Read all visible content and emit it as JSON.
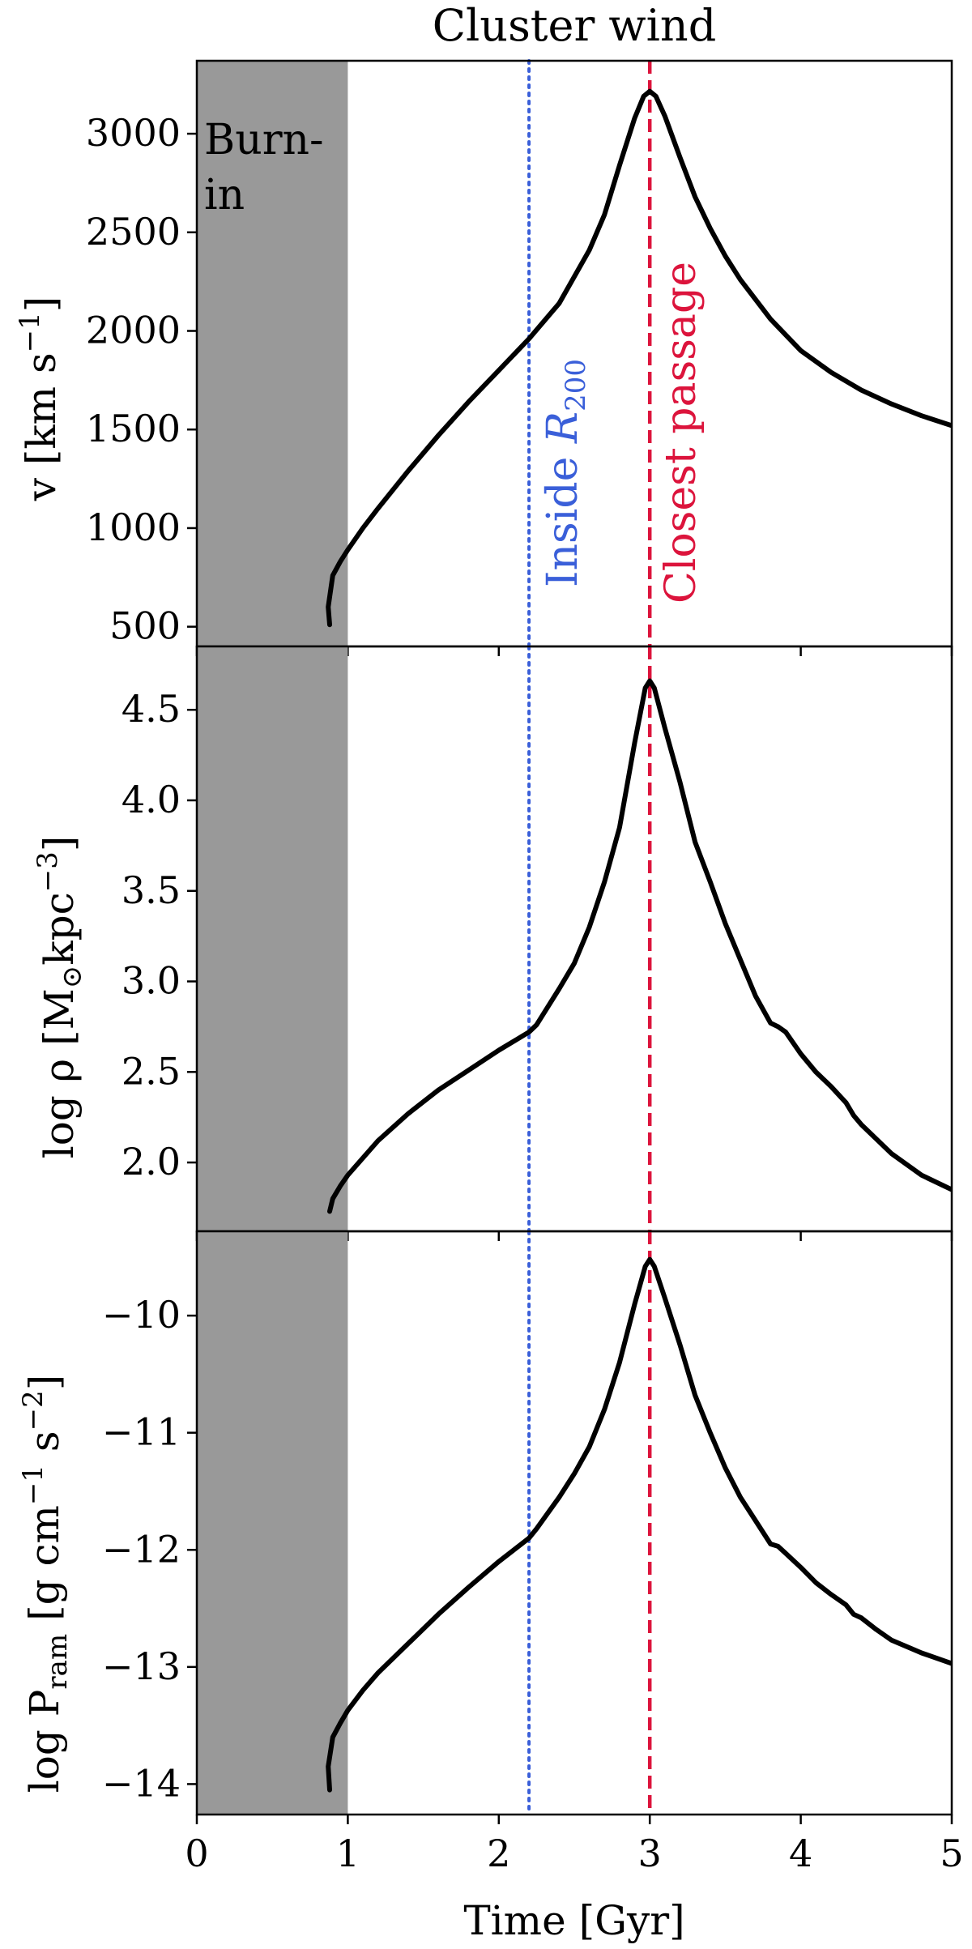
{
  "title": "Cluster wind",
  "colors": {
    "burn_in_shade": "#999999",
    "inside_r200_line": "#3a5fd9",
    "closest_passage_line": "#dc143c",
    "curve": "#000000"
  },
  "annotations": {
    "burn_in_line1": "Burn-",
    "burn_in_line2": "in",
    "inside_r200_prefix": "Inside ",
    "inside_r200_symbol": "R",
    "inside_r200_sub": "200",
    "closest_passage": "Closest passage"
  },
  "xlabel": "Time [Gyr]",
  "ylabel_v": {
    "main": "v [km s",
    "sup": "−1",
    "close": "]"
  },
  "ylabel_rho": {
    "main": "log ρ [M",
    "sub": "⊙",
    "mid": "kpc",
    "sup": "−3",
    "close": "]"
  },
  "ylabel_pram": {
    "main": "log P",
    "sub": "ram",
    "mid": " [g cm",
    "sup1": "−1",
    "mid2": " s",
    "sup2": "−2",
    "close": "]"
  },
  "chart_data": [
    {
      "type": "line",
      "panel": "velocity",
      "xlim": [
        0,
        5
      ],
      "ylim": [
        400,
        3370
      ],
      "x_ticks": [
        0,
        1,
        2,
        3,
        4,
        5
      ],
      "x_tick_labels": [
        "0",
        "1",
        "2",
        "3",
        "4",
        "5"
      ],
      "y_ticks": [
        500,
        1000,
        1500,
        2000,
        2500,
        3000
      ],
      "y_tick_labels": [
        "500",
        "1000",
        "1500",
        "2000",
        "2500",
        "3000"
      ],
      "burn_in": [
        0,
        1
      ],
      "inside_r200_time": 2.2,
      "closest_passage_time": 3.0,
      "x": [
        0.88,
        0.87,
        0.9,
        0.95,
        1.0,
        1.1,
        1.2,
        1.4,
        1.6,
        1.8,
        2.0,
        2.2,
        2.4,
        2.6,
        2.7,
        2.8,
        2.9,
        2.96,
        3.0,
        3.04,
        3.1,
        3.2,
        3.3,
        3.4,
        3.5,
        3.6,
        3.8,
        4.0,
        4.2,
        4.4,
        4.6,
        4.8,
        5.0
      ],
      "y": [
        510,
        600,
        760,
        830,
        890,
        1000,
        1100,
        1290,
        1470,
        1640,
        1800,
        1960,
        2140,
        2410,
        2590,
        2840,
        3080,
        3190,
        3215,
        3190,
        3090,
        2880,
        2680,
        2520,
        2380,
        2260,
        2060,
        1900,
        1790,
        1700,
        1630,
        1570,
        1520
      ]
    },
    {
      "type": "line",
      "panel": "density",
      "xlim": [
        0,
        5
      ],
      "ylim": [
        1.62,
        4.85
      ],
      "x_ticks": [
        0,
        1,
        2,
        3,
        4,
        5
      ],
      "y_ticks": [
        2.0,
        2.5,
        3.0,
        3.5,
        4.0,
        4.5
      ],
      "y_tick_labels": [
        "2.0",
        "2.5",
        "3.0",
        "3.5",
        "4.0",
        "4.5"
      ],
      "burn_in": [
        0,
        1
      ],
      "inside_r200_time": 2.2,
      "closest_passage_time": 3.0,
      "x": [
        0.88,
        0.9,
        0.95,
        1.0,
        1.2,
        1.4,
        1.6,
        1.8,
        2.0,
        2.2,
        2.25,
        2.4,
        2.5,
        2.6,
        2.7,
        2.8,
        2.9,
        2.97,
        3.0,
        3.03,
        3.1,
        3.2,
        3.3,
        3.4,
        3.5,
        3.6,
        3.7,
        3.8,
        3.85,
        3.9,
        4.0,
        4.1,
        4.2,
        4.3,
        4.35,
        4.4,
        4.5,
        4.6,
        4.8,
        5.0
      ],
      "y": [
        1.73,
        1.8,
        1.87,
        1.93,
        2.12,
        2.27,
        2.4,
        2.51,
        2.62,
        2.72,
        2.76,
        2.96,
        3.1,
        3.3,
        3.55,
        3.85,
        4.32,
        4.62,
        4.66,
        4.62,
        4.4,
        4.1,
        3.77,
        3.55,
        3.32,
        3.12,
        2.92,
        2.77,
        2.75,
        2.72,
        2.6,
        2.5,
        2.42,
        2.33,
        2.26,
        2.21,
        2.13,
        2.05,
        1.93,
        1.85
      ]
    },
    {
      "type": "line",
      "panel": "ram_pressure",
      "xlim": [
        0,
        5
      ],
      "ylim": [
        -14.26,
        -9.28
      ],
      "x_ticks": [
        0,
        1,
        2,
        3,
        4,
        5
      ],
      "x_tick_labels": [
        "0",
        "1",
        "2",
        "3",
        "4",
        "5"
      ],
      "y_ticks": [
        -14,
        -13,
        -12,
        -11,
        -10
      ],
      "y_tick_labels": [
        "−14",
        "−13",
        "−12",
        "−11",
        "−10"
      ],
      "burn_in": [
        0,
        1
      ],
      "inside_r200_time": 2.2,
      "closest_passage_time": 3.0,
      "x": [
        0.88,
        0.87,
        0.9,
        0.95,
        1.0,
        1.1,
        1.2,
        1.4,
        1.6,
        1.8,
        2.0,
        2.2,
        2.25,
        2.4,
        2.5,
        2.6,
        2.7,
        2.8,
        2.9,
        2.97,
        3.0,
        3.03,
        3.1,
        3.2,
        3.3,
        3.4,
        3.5,
        3.6,
        3.7,
        3.8,
        3.85,
        3.9,
        4.0,
        4.1,
        4.2,
        4.3,
        4.35,
        4.4,
        4.5,
        4.6,
        4.8,
        5.0
      ],
      "y": [
        -14.05,
        -13.85,
        -13.6,
        -13.48,
        -13.37,
        -13.2,
        -13.05,
        -12.8,
        -12.55,
        -12.32,
        -12.1,
        -11.9,
        -11.82,
        -11.55,
        -11.35,
        -11.12,
        -10.8,
        -10.4,
        -9.9,
        -9.58,
        -9.52,
        -9.58,
        -9.85,
        -10.25,
        -10.68,
        -11.0,
        -11.3,
        -11.55,
        -11.75,
        -11.95,
        -11.97,
        -12.03,
        -12.15,
        -12.28,
        -12.38,
        -12.47,
        -12.55,
        -12.58,
        -12.68,
        -12.77,
        -12.88,
        -12.97
      ]
    }
  ]
}
